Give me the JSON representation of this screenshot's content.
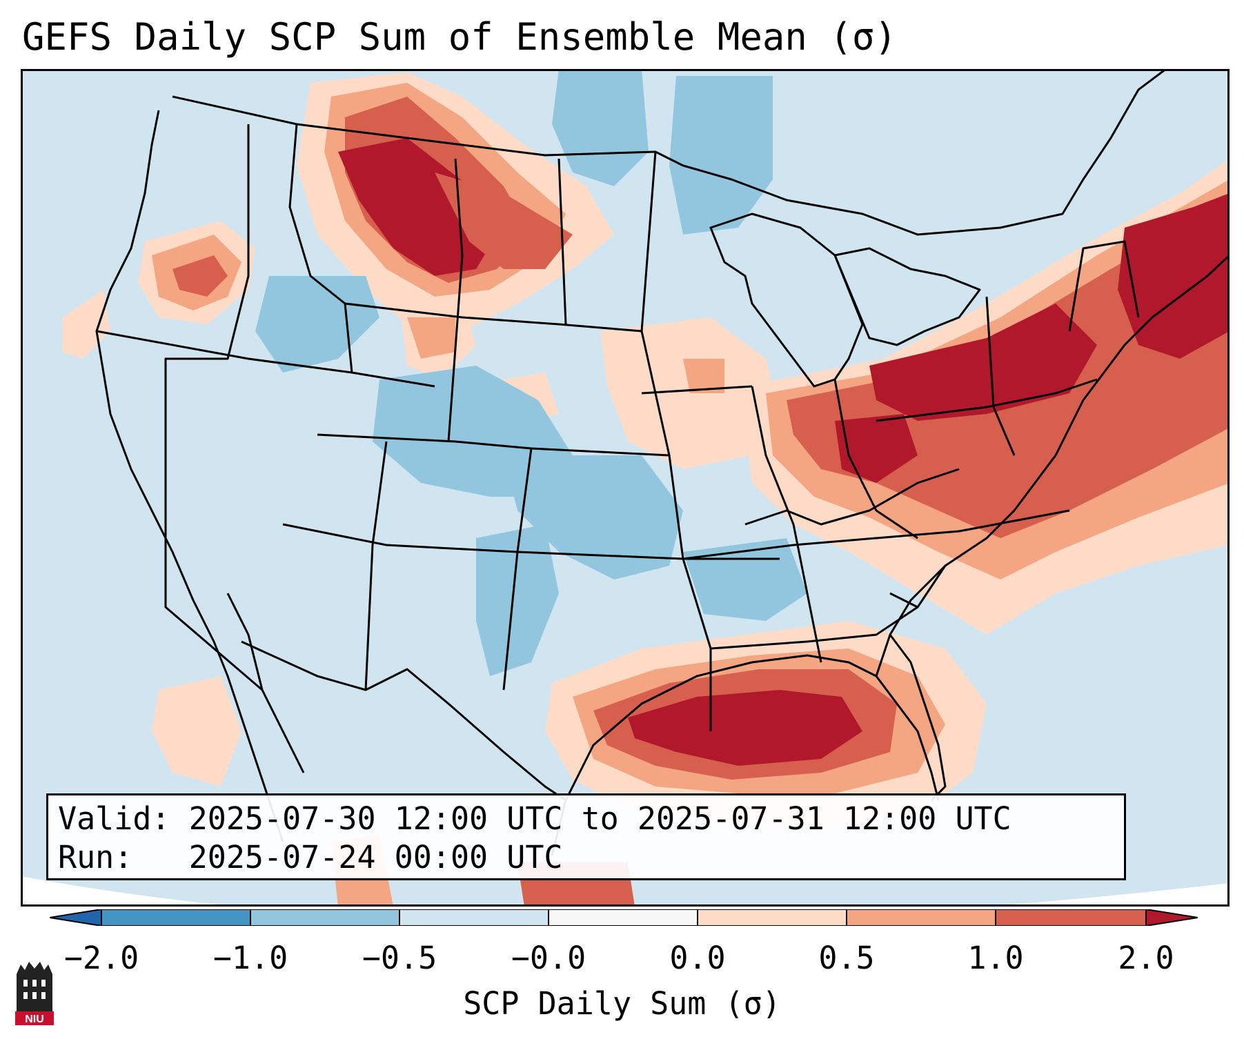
{
  "title": "GEFS Daily SCP Sum of Ensemble Mean (σ)",
  "info": {
    "valid_label": "Valid:",
    "valid_value": "2025-07-30 12:00 UTC to 2025-07-31 12:00 UTC",
    "run_label": "Run:",
    "run_value": "2025-07-24 00:00 UTC"
  },
  "colorbar": {
    "label": "SCP Daily Sum (σ)",
    "ticks": [
      "−2.0",
      "−1.0",
      "−0.5",
      "−0.0",
      "0.0",
      "0.5",
      "1.0",
      "2.0"
    ],
    "bins": [
      {
        "from": -2.0,
        "to": -1.0,
        "color": "#4393c3"
      },
      {
        "from": -1.0,
        "to": -0.5,
        "color": "#92c5de"
      },
      {
        "from": -0.5,
        "to": 0.0,
        "color": "#d1e5f0"
      },
      {
        "from": 0.0,
        "to": 0.0,
        "color": "#f7f7f7"
      },
      {
        "from": 0.0,
        "to": 0.5,
        "color": "#fddbc7"
      },
      {
        "from": 0.5,
        "to": 1.0,
        "color": "#f4a582"
      },
      {
        "from": 1.0,
        "to": 2.0,
        "color": "#d6604d"
      }
    ],
    "under_color": "#2166ac",
    "over_color": "#b2182b"
  },
  "logo": {
    "text": "NIU",
    "color": "#c8102e"
  }
}
